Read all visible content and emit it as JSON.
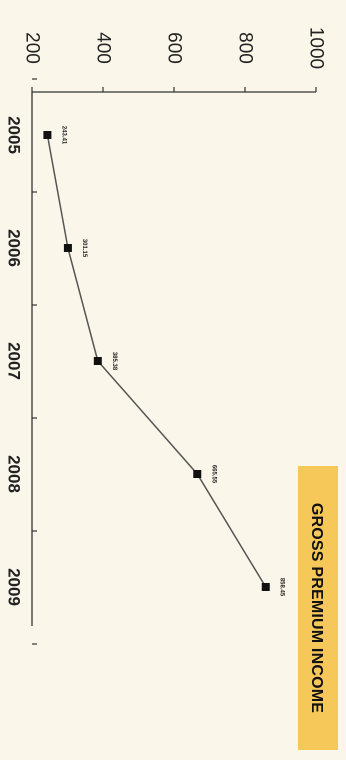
{
  "chart_data": {
    "type": "line",
    "title": "GROSS PREMIUM INCOME",
    "title_bg": "#f6c85a",
    "background": "#fbf6ea",
    "line_color": "#555555",
    "marker_color": "#111111",
    "categories": [
      "2005",
      "2006",
      "2007",
      "2008",
      "2009"
    ],
    "values": [
      243.41,
      301.15,
      385.38,
      665.55,
      858.45
    ],
    "data_labels": [
      "243.41",
      "301.15",
      "385.38",
      "665.55",
      "858.45"
    ],
    "ylim": [
      200,
      1000
    ],
    "yticks": [
      200,
      400,
      600,
      800,
      1000
    ],
    "ytick_labels": [
      "200",
      "400",
      "600",
      "800",
      "1000"
    ],
    "orientation": "rotated 90 degrees clockwise",
    "grid": false,
    "legend": "none"
  }
}
